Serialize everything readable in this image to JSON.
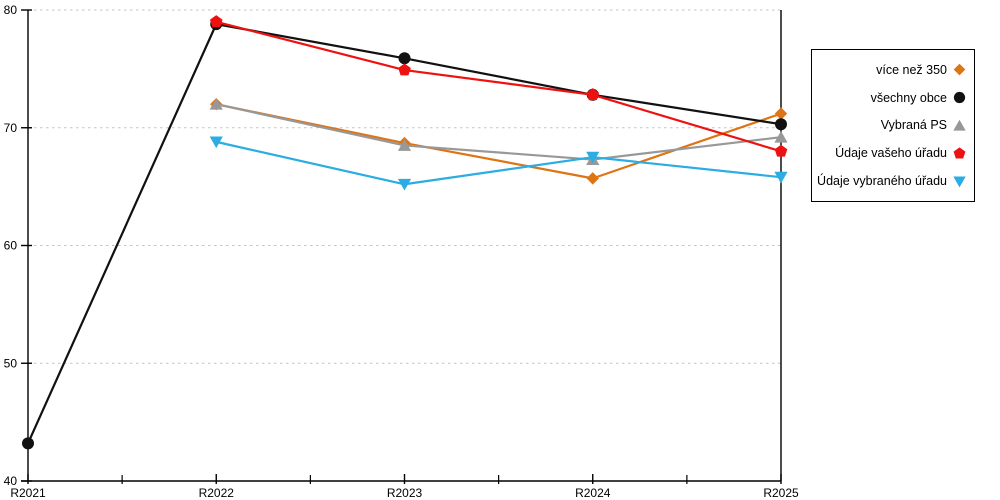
{
  "chart_data": {
    "type": "line",
    "title": "",
    "xlabel": "",
    "ylabel": "",
    "categories": [
      "R2021",
      "R2022",
      "R2023",
      "R2024",
      "R2025"
    ],
    "series": [
      {
        "name": "více než 350",
        "marker": "diamond",
        "color": "#DE7413",
        "values": [
          null,
          72.0,
          68.7,
          65.7,
          71.2
        ]
      },
      {
        "name": "všechny obce",
        "marker": "circle",
        "color": "#111111",
        "values": [
          43.2,
          78.8,
          75.9,
          72.8,
          70.3
        ]
      },
      {
        "name": "Vybraná PS",
        "marker": "triangle-up",
        "color": "#989898",
        "values": [
          null,
          72.0,
          68.5,
          67.3,
          69.2
        ]
      },
      {
        "name": "Údaje vašeho úřadu",
        "marker": "pentagon",
        "color": "#EE1111",
        "values": [
          null,
          79.0,
          74.9,
          72.8,
          68.0
        ]
      },
      {
        "name": "Údaje vybraného úřadu",
        "marker": "triangle-down",
        "color": "#2BACE2",
        "values": [
          null,
          68.8,
          65.2,
          67.5,
          65.8
        ]
      }
    ],
    "ylim": [
      40,
      80
    ],
    "yticks": [
      40,
      50,
      60,
      70,
      80
    ],
    "grid": "horizontal-dashed",
    "grid_color": "#C4C4C4",
    "axis_color": "#000000",
    "legend_position": "right"
  }
}
